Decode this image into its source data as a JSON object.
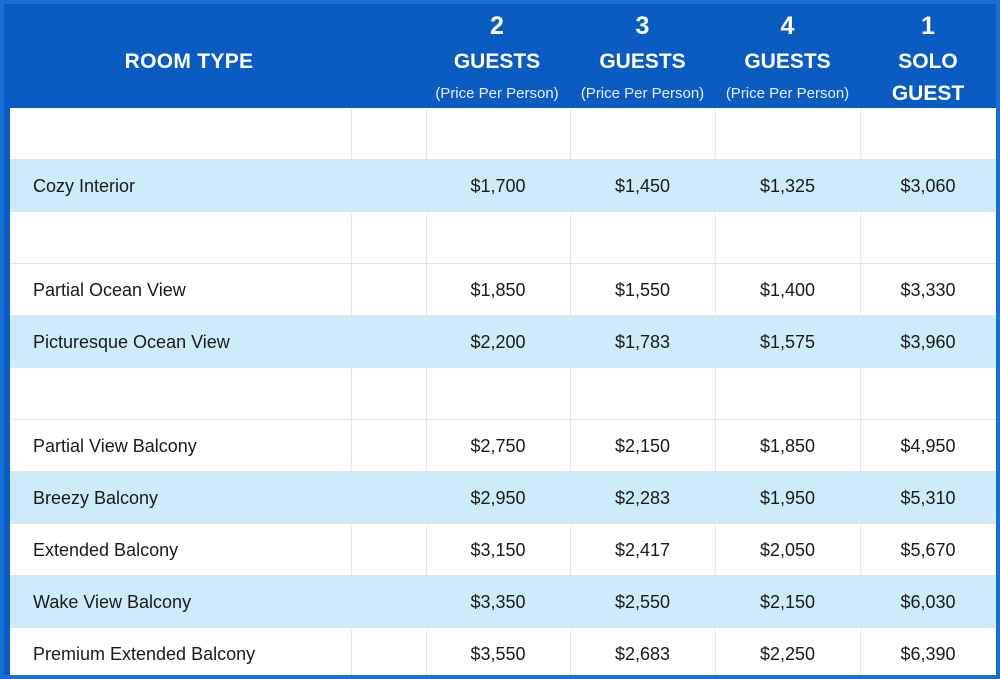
{
  "header": {
    "room_type_label": "ROOM TYPE",
    "columns": [
      {
        "number": "2",
        "word": "GUESTS",
        "sub": "(Price Per Person)"
      },
      {
        "number": "3",
        "word": "GUESTS",
        "sub": "(Price Per Person)"
      },
      {
        "number": "4",
        "word": "GUESTS",
        "sub": "(Price Per Person)"
      },
      {
        "number": "1",
        "word": "SOLO",
        "word2": "GUEST"
      }
    ]
  },
  "rows": [
    {
      "name": "",
      "prices": [
        "",
        "",
        "",
        ""
      ],
      "alt": false
    },
    {
      "name": "Cozy Interior",
      "prices": [
        "$1,700",
        "$1,450",
        "$1,325",
        "$3,060"
      ],
      "alt": true
    },
    {
      "name": "",
      "prices": [
        "",
        "",
        "",
        ""
      ],
      "alt": false
    },
    {
      "name": "Partial Ocean View",
      "prices": [
        "$1,850",
        "$1,550",
        "$1,400",
        "$3,330"
      ],
      "alt": false
    },
    {
      "name": "Picturesque Ocean View",
      "prices": [
        "$2,200",
        "$1,783",
        "$1,575",
        "$3,960"
      ],
      "alt": true
    },
    {
      "name": "",
      "prices": [
        "",
        "",
        "",
        ""
      ],
      "alt": false
    },
    {
      "name": "Partial View Balcony",
      "prices": [
        "$2,750",
        "$2,150",
        "$1,850",
        "$4,950"
      ],
      "alt": false
    },
    {
      "name": "Breezy Balcony",
      "prices": [
        "$2,950",
        "$2,283",
        "$1,950",
        "$5,310"
      ],
      "alt": true
    },
    {
      "name": "Extended Balcony",
      "prices": [
        "$3,150",
        "$2,417",
        "$2,050",
        "$5,670"
      ],
      "alt": false
    },
    {
      "name": "Wake View Balcony",
      "prices": [
        "$3,350",
        "$2,550",
        "$2,150",
        "$6,030"
      ],
      "alt": true
    },
    {
      "name": "Premium Extended Balcony",
      "prices": [
        "$3,550",
        "$2,683",
        "$2,250",
        "$6,390"
      ],
      "alt": false
    }
  ],
  "colors": {
    "header_bg": "#0a5bc2",
    "alt_row_bg": "#cdebf8",
    "border": "#1a6fd6"
  }
}
